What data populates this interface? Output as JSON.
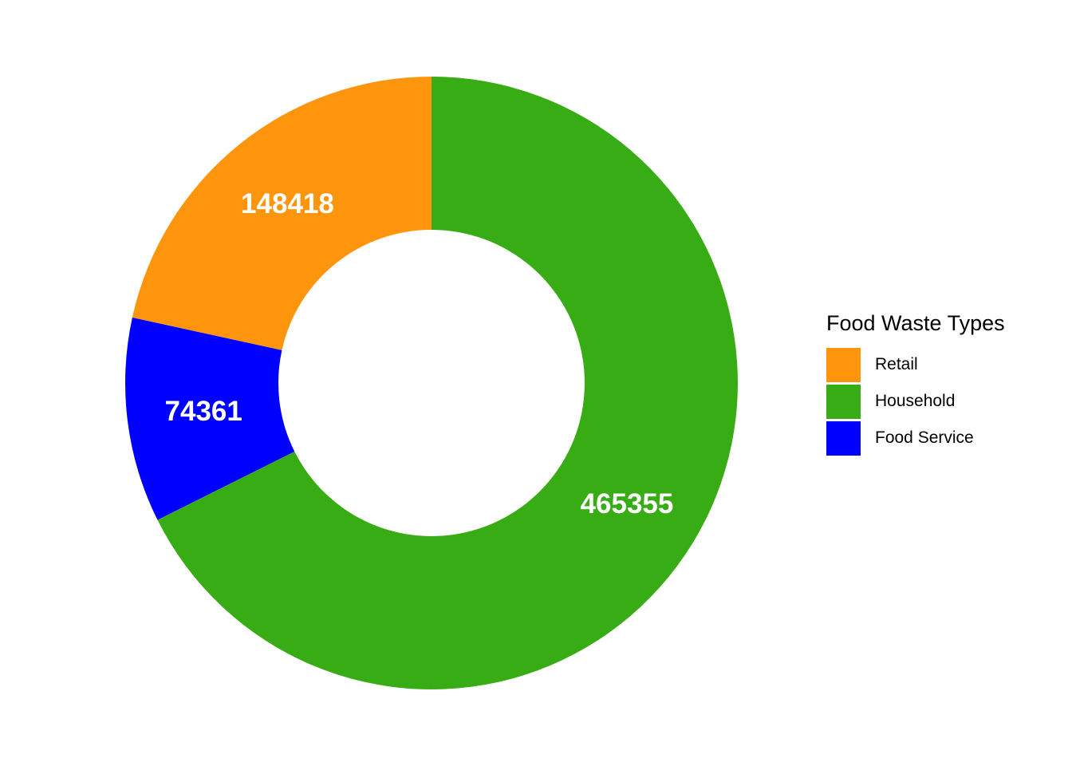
{
  "chart_data": {
    "type": "pie",
    "variant": "donut",
    "title": "",
    "legend": {
      "title": "Food Waste Types",
      "placement": "right"
    },
    "slices": [
      {
        "name": "Household",
        "value": 465355,
        "label": "465355",
        "color": "#38AC14"
      },
      {
        "name": "Food Service",
        "value": 74361,
        "label": "74361",
        "color": "#0000FF"
      },
      {
        "name": "Retail",
        "value": 148418,
        "label": "148418",
        "color": "#FF950C"
      }
    ],
    "legend_order": [
      "Retail",
      "Household",
      "Food Service"
    ]
  }
}
